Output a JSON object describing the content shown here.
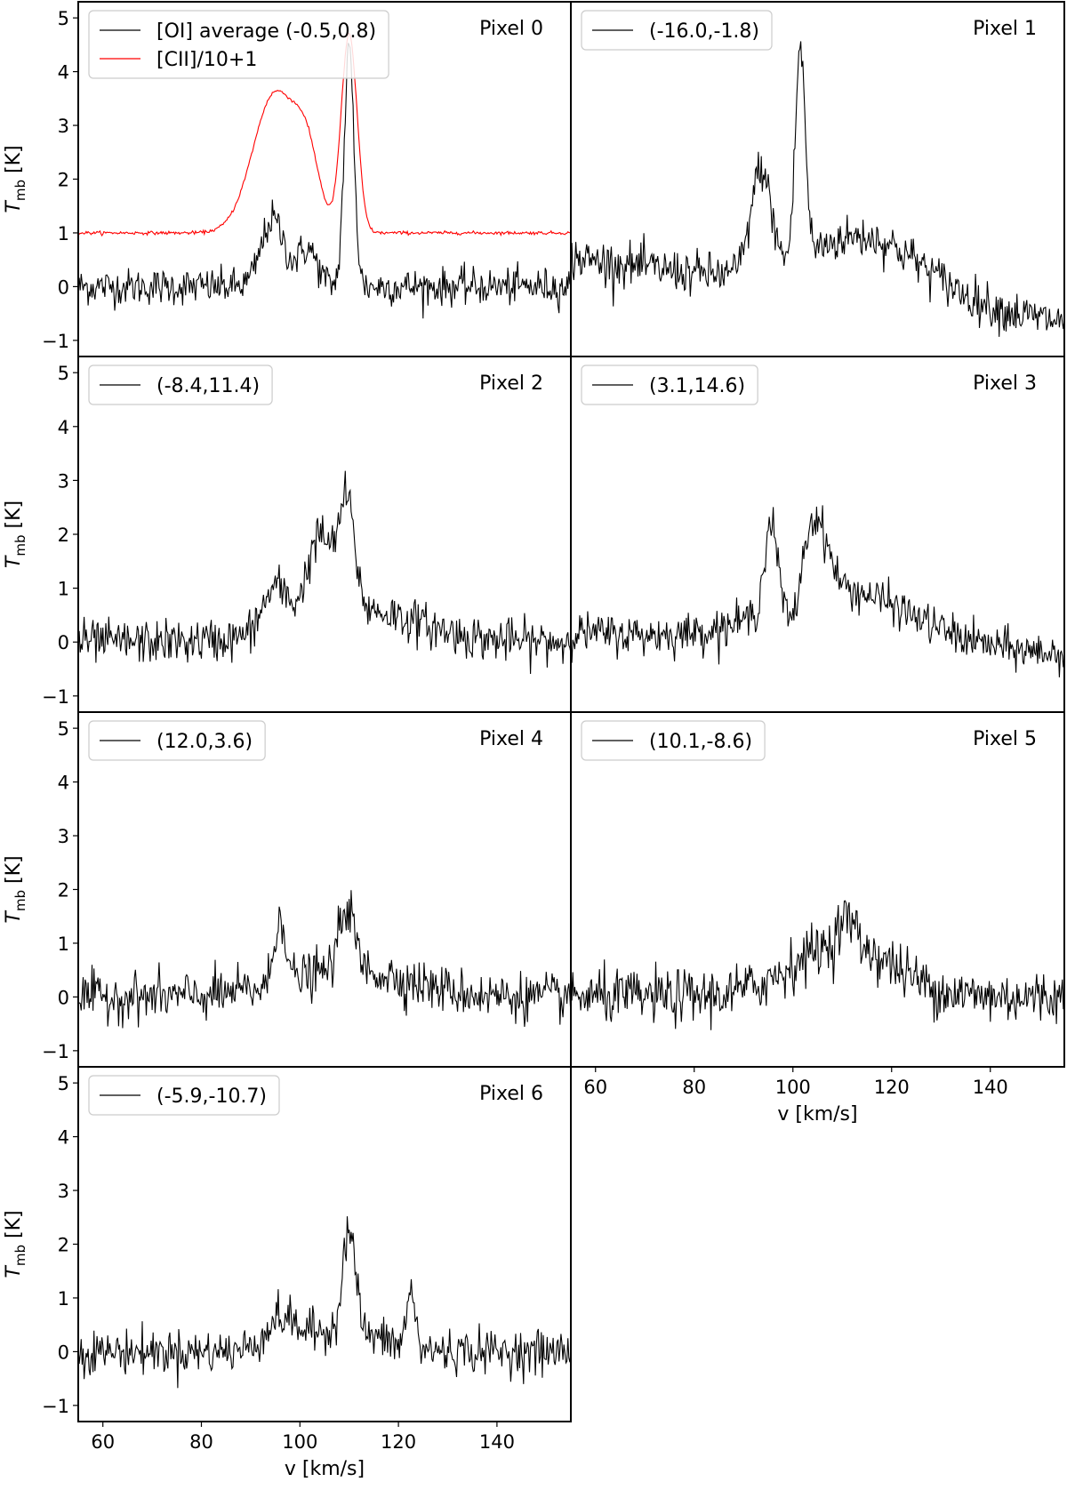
{
  "chart_data": {
    "type": "line",
    "layout": "7 stacked spectra panels in a 4x2 grid (last row single panel, right column bottom empty); shared x range, shared y range",
    "xlabel": "v [km/s]",
    "ylabel_main": "T",
    "ylabel_sub": "mb",
    "ylabel_unit": "[K]",
    "xlim": [
      55,
      155
    ],
    "ylim": [
      -1.3,
      5.3
    ],
    "xticks": [
      60,
      80,
      100,
      120,
      140
    ],
    "yticks": [
      -1,
      0,
      1,
      2,
      3,
      4,
      5
    ],
    "line_color": "#000000",
    "cii_color": "#ff0000",
    "panels": [
      {
        "pixel_label": "Pixel 0",
        "series": [
          {
            "name": "[OI] average (-0.5,0.8)",
            "color": "#000000",
            "noise": 0.17,
            "baseline": 0.0,
            "components": [
              {
                "v": 94.5,
                "amp": 1.25,
                "sigma": 2.3
              },
              {
                "v": 101.5,
                "amp": 0.7,
                "sigma": 2.0
              },
              {
                "v": 110.0,
                "amp": 4.4,
                "sigma": 1.0
              }
            ]
          },
          {
            "name": "[CII]/10+1",
            "color": "#ff0000",
            "noise": 0.015,
            "baseline": 1.0,
            "components": [
              {
                "v": 95.0,
                "amp": 2.6,
                "sigma": 4.5
              },
              {
                "v": 101.5,
                "amp": 1.1,
                "sigma": 2.5
              },
              {
                "v": 110.0,
                "amp": 3.7,
                "sigma": 1.6
              }
            ]
          }
        ]
      },
      {
        "pixel_label": "Pixel 1",
        "series": [
          {
            "name": "(-16.0,-1.8)",
            "color": "#000000",
            "noise": 0.2,
            "baseline": 0.0,
            "slope": -0.012,
            "components": [
              {
                "v": 93.5,
                "amp": 1.9,
                "sigma": 2.0
              },
              {
                "v": 101.5,
                "amp": 3.9,
                "sigma": 1.0
              },
              {
                "v": 115.0,
                "amp": 1.1,
                "sigma": 12.0
              }
            ]
          }
        ]
      },
      {
        "pixel_label": "Pixel 2",
        "series": [
          {
            "name": "(-8.4,11.4)",
            "color": "#000000",
            "noise": 0.2,
            "baseline": 0.0,
            "components": [
              {
                "v": 95.0,
                "amp": 0.8,
                "sigma": 2.5
              },
              {
                "v": 104.0,
                "amp": 1.5,
                "sigma": 2.5
              },
              {
                "v": 109.5,
                "amp": 2.0,
                "sigma": 1.6
              },
              {
                "v": 112.0,
                "amp": 0.6,
                "sigma": 12.0
              }
            ]
          }
        ]
      },
      {
        "pixel_label": "Pixel 3",
        "series": [
          {
            "name": "(3.1,14.6)",
            "color": "#000000",
            "noise": 0.18,
            "baseline": 0.0,
            "slope": -0.004,
            "components": [
              {
                "v": 95.5,
                "amp": 1.6,
                "sigma": 1.3
              },
              {
                "v": 104.5,
                "amp": 1.4,
                "sigma": 2.5
              },
              {
                "v": 110.0,
                "amp": 1.0,
                "sigma": 14.0
              },
              {
                "v": 100.0,
                "amp": -0.6,
                "sigma": 1.3
              }
            ]
          }
        ]
      },
      {
        "pixel_label": "Pixel 4",
        "series": [
          {
            "name": "(12.0,3.6)",
            "color": "#000000",
            "noise": 0.22,
            "baseline": 0.0,
            "components": [
              {
                "v": 96.0,
                "amp": 1.3,
                "sigma": 1.1
              },
              {
                "v": 109.5,
                "amp": 1.2,
                "sigma": 1.5
              },
              {
                "v": 110.0,
                "amp": 0.5,
                "sigma": 12.0
              }
            ]
          }
        ]
      },
      {
        "pixel_label": "Pixel 5",
        "series": [
          {
            "name": "(10.1,-8.6)",
            "color": "#000000",
            "noise": 0.25,
            "baseline": 0.0,
            "components": [
              {
                "v": 110.0,
                "amp": 1.0,
                "sigma": 10.0
              },
              {
                "v": 111.0,
                "amp": 0.5,
                "sigma": 1.5
              }
            ]
          }
        ]
      },
      {
        "pixel_label": "Pixel 6",
        "series": [
          {
            "name": "(-5.9,-10.7)",
            "color": "#000000",
            "noise": 0.2,
            "baseline": 0.0,
            "components": [
              {
                "v": 96.0,
                "amp": 0.5,
                "sigma": 3.0
              },
              {
                "v": 110.0,
                "amp": 1.9,
                "sigma": 1.3
              },
              {
                "v": 122.5,
                "amp": 1.1,
                "sigma": 0.8
              },
              {
                "v": 108.0,
                "amp": 0.4,
                "sigma": 8.0
              }
            ]
          }
        ]
      }
    ]
  }
}
